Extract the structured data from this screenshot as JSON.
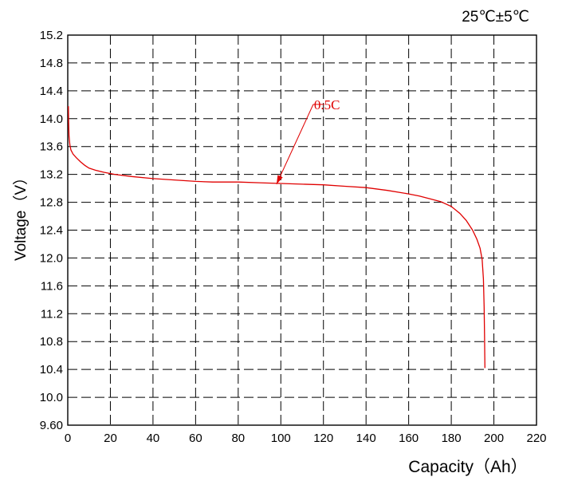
{
  "chart_data": {
    "type": "line",
    "title": "25℃±5℃",
    "xlabel": "Capacity（Ah）",
    "ylabel": "Voltage（V）",
    "xlim": [
      0,
      220
    ],
    "ylim": [
      9.6,
      15.2
    ],
    "x_ticks": [
      "0",
      "20",
      "40",
      "60",
      "80",
      "100",
      "120",
      "140",
      "160",
      "180",
      "200",
      "220"
    ],
    "y_ticks": [
      "9.60",
      "10.0",
      "10.4",
      "10.8",
      "11.2",
      "11.6",
      "12.0",
      "12.4",
      "12.8",
      "13.2",
      "13.6",
      "14.0",
      "14.4",
      "14.8",
      "15.2"
    ],
    "grid": true,
    "line_color": "#e00000",
    "annotation": {
      "text": "0.5C",
      "x": 98,
      "y": 13.06
    },
    "series": [
      {
        "x": [
          0.3,
          0.4,
          0.6,
          1,
          1.5,
          2.5,
          4,
          6,
          8,
          10,
          13,
          17,
          22,
          30,
          40,
          50,
          60,
          68,
          75,
          80,
          90,
          100,
          110,
          120,
          130,
          140,
          150,
          160,
          165,
          170,
          175,
          180,
          184,
          187,
          190,
          192,
          193.5,
          194.5,
          195.1,
          195.4,
          195.6,
          195.7,
          195.8
        ],
        "y": [
          14.18,
          13.95,
          13.75,
          13.62,
          13.55,
          13.49,
          13.44,
          13.38,
          13.33,
          13.29,
          13.26,
          13.23,
          13.2,
          13.17,
          13.14,
          13.12,
          13.1,
          13.09,
          13.09,
          13.09,
          13.08,
          13.07,
          13.06,
          13.05,
          13.03,
          13.01,
          12.97,
          12.92,
          12.89,
          12.85,
          12.81,
          12.74,
          12.64,
          12.54,
          12.4,
          12.27,
          12.14,
          11.98,
          11.7,
          11.3,
          10.9,
          10.6,
          10.42
        ]
      }
    ]
  }
}
